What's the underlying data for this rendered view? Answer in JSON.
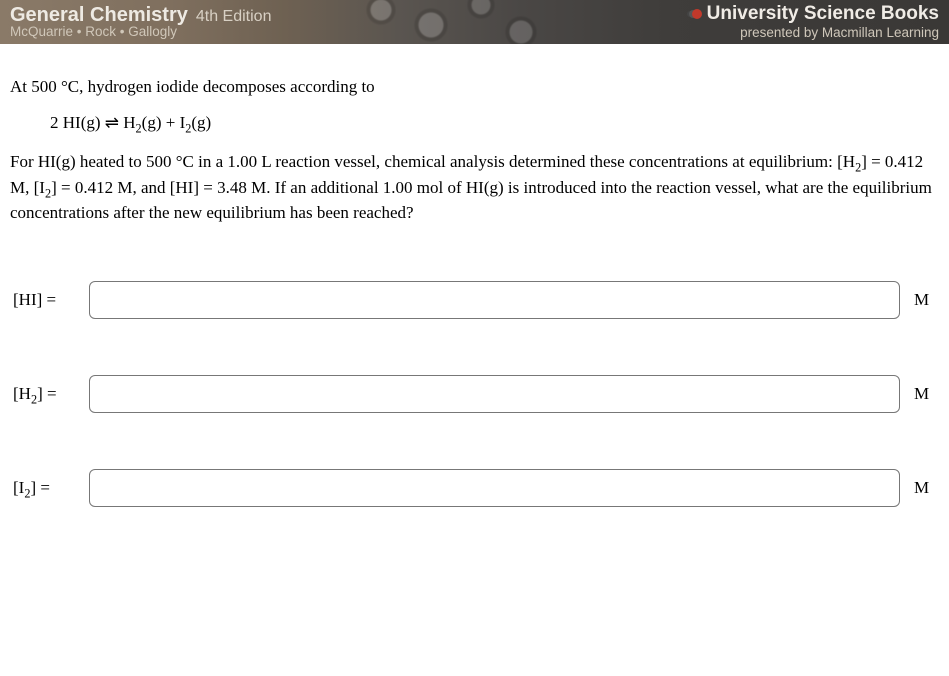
{
  "banner": {
    "title": "General Chemistry",
    "edition": "4th Edition",
    "authors": "McQuarrie • Rock • Gallogly",
    "publisher": "University Science Books",
    "presenter": "presented by Macmillan Learning",
    "logo_color": "#c1392b",
    "bg_gradient": [
      "#8a7a68",
      "#3a3836"
    ]
  },
  "question": {
    "intro": "At 500 °C, hydrogen iodide decomposes according to",
    "equation_html": "2 HI(g) &#8652; H<sub>2</sub>(g) + I<sub>2</sub>(g)",
    "body_html": "For HI(g) heated to 500 °C in a 1.00 L reaction vessel, chemical analysis determined these concentrations at equilibrium: [H<sub>2</sub>] = 0.412 M, [I<sub>2</sub>] = 0.412 M, and [HI] = 3.48 M. If an additional 1.00 mol of HI(g) is introduced into the reaction vessel, what are the equilibrium concentrations after the new equilibrium has been reached?"
  },
  "answers": [
    {
      "label_html": "[HI] =",
      "value": "",
      "unit": "M",
      "name": "hi-input"
    },
    {
      "label_html": "[H<sub>2</sub>] =",
      "value": "",
      "unit": "M",
      "name": "h2-input"
    },
    {
      "label_html": "[I<sub>2</sub>] =",
      "value": "",
      "unit": "M",
      "name": "i2-input"
    }
  ],
  "styles": {
    "body_fontsize": 17,
    "input_border_color": "#777777",
    "input_border_radius": 6,
    "text_color": "#000000",
    "background_color": "#ffffff"
  }
}
